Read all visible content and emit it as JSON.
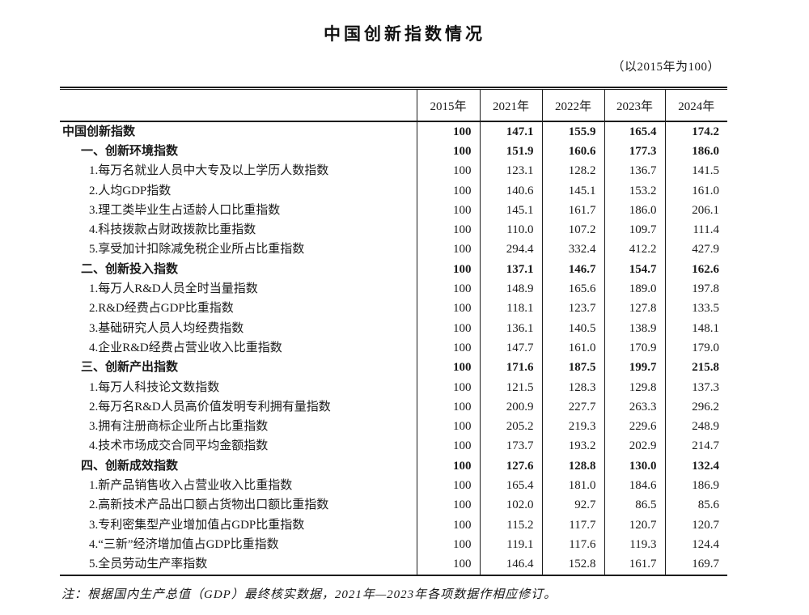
{
  "page": {
    "title": "中国创新指数情况",
    "subtitle": "（以2015年为100）",
    "footnote": "注：根据国内生产总值（GDP）最终核实数据，2021年—2023年各项数据作相应修订。"
  },
  "colors": {
    "background": "#ffffff",
    "text": "#1a1a1a",
    "border": "#1c1c1c"
  },
  "table": {
    "label_column_header": "",
    "year_columns": [
      "2015年",
      "2021年",
      "2022年",
      "2023年",
      "2024年"
    ],
    "rows": [
      {
        "label": "中国创新指数",
        "level": 0,
        "bold": true,
        "values": [
          "100",
          "147.1",
          "155.9",
          "165.4",
          "174.2"
        ]
      },
      {
        "label": "一、创新环境指数",
        "level": 1,
        "bold": true,
        "values": [
          "100",
          "151.9",
          "160.6",
          "177.3",
          "186.0"
        ]
      },
      {
        "label": "1.每万名就业人员中大专及以上学历人数指数",
        "level": 2,
        "bold": false,
        "values": [
          "100",
          "123.1",
          "128.2",
          "136.7",
          "141.5"
        ]
      },
      {
        "label": "2.人均GDP指数",
        "level": 2,
        "bold": false,
        "values": [
          "100",
          "140.6",
          "145.1",
          "153.2",
          "161.0"
        ]
      },
      {
        "label": "3.理工类毕业生占适龄人口比重指数",
        "level": 2,
        "bold": false,
        "values": [
          "100",
          "145.1",
          "161.7",
          "186.0",
          "206.1"
        ]
      },
      {
        "label": "4.科技拨款占财政拨款比重指数",
        "level": 2,
        "bold": false,
        "values": [
          "100",
          "110.0",
          "107.2",
          "109.7",
          "111.4"
        ]
      },
      {
        "label": "5.享受加计扣除减免税企业所占比重指数",
        "level": 2,
        "bold": false,
        "values": [
          "100",
          "294.4",
          "332.4",
          "412.2",
          "427.9"
        ]
      },
      {
        "label": "二、创新投入指数",
        "level": 1,
        "bold": true,
        "values": [
          "100",
          "137.1",
          "146.7",
          "154.7",
          "162.6"
        ]
      },
      {
        "label": "1.每万人R&D人员全时当量指数",
        "level": 2,
        "bold": false,
        "values": [
          "100",
          "148.9",
          "165.6",
          "189.0",
          "197.8"
        ]
      },
      {
        "label": "2.R&D经费占GDP比重指数",
        "level": 2,
        "bold": false,
        "values": [
          "100",
          "118.1",
          "123.7",
          "127.8",
          "133.5"
        ]
      },
      {
        "label": "3.基础研究人员人均经费指数",
        "level": 2,
        "bold": false,
        "values": [
          "100",
          "136.1",
          "140.5",
          "138.9",
          "148.1"
        ]
      },
      {
        "label": "4.企业R&D经费占营业收入比重指数",
        "level": 2,
        "bold": false,
        "values": [
          "100",
          "147.7",
          "161.0",
          "170.9",
          "179.0"
        ]
      },
      {
        "label": "三、创新产出指数",
        "level": 1,
        "bold": true,
        "values": [
          "100",
          "171.6",
          "187.5",
          "199.7",
          "215.8"
        ]
      },
      {
        "label": "1.每万人科技论文数指数",
        "level": 2,
        "bold": false,
        "values": [
          "100",
          "121.5",
          "128.3",
          "129.8",
          "137.3"
        ]
      },
      {
        "label": "2.每万名R&D人员高价值发明专利拥有量指数",
        "level": 2,
        "bold": false,
        "values": [
          "100",
          "200.9",
          "227.7",
          "263.3",
          "296.2"
        ]
      },
      {
        "label": "3.拥有注册商标企业所占比重指数",
        "level": 2,
        "bold": false,
        "values": [
          "100",
          "205.2",
          "219.3",
          "229.6",
          "248.9"
        ]
      },
      {
        "label": "4.技术市场成交合同平均金额指数",
        "level": 2,
        "bold": false,
        "values": [
          "100",
          "173.7",
          "193.2",
          "202.9",
          "214.7"
        ]
      },
      {
        "label": "四、创新成效指数",
        "level": 1,
        "bold": true,
        "values": [
          "100",
          "127.6",
          "128.8",
          "130.0",
          "132.4"
        ]
      },
      {
        "label": "1.新产品销售收入占营业收入比重指数",
        "level": 2,
        "bold": false,
        "values": [
          "100",
          "165.4",
          "181.0",
          "184.6",
          "186.9"
        ]
      },
      {
        "label": "2.高新技术产品出口额占货物出口额比重指数",
        "level": 2,
        "bold": false,
        "values": [
          "100",
          "102.0",
          "92.7",
          "86.5",
          "85.6"
        ]
      },
      {
        "label": "3.专利密集型产业增加值占GDP比重指数",
        "level": 2,
        "bold": false,
        "values": [
          "100",
          "115.2",
          "117.7",
          "120.7",
          "120.7"
        ]
      },
      {
        "label": "4.“三新”经济增加值占GDP比重指数",
        "level": 2,
        "bold": false,
        "values": [
          "100",
          "119.1",
          "117.6",
          "119.3",
          "124.4"
        ]
      },
      {
        "label": "5.全员劳动生产率指数",
        "level": 2,
        "bold": false,
        "values": [
          "100",
          "146.4",
          "152.8",
          "161.7",
          "169.7"
        ]
      }
    ]
  }
}
